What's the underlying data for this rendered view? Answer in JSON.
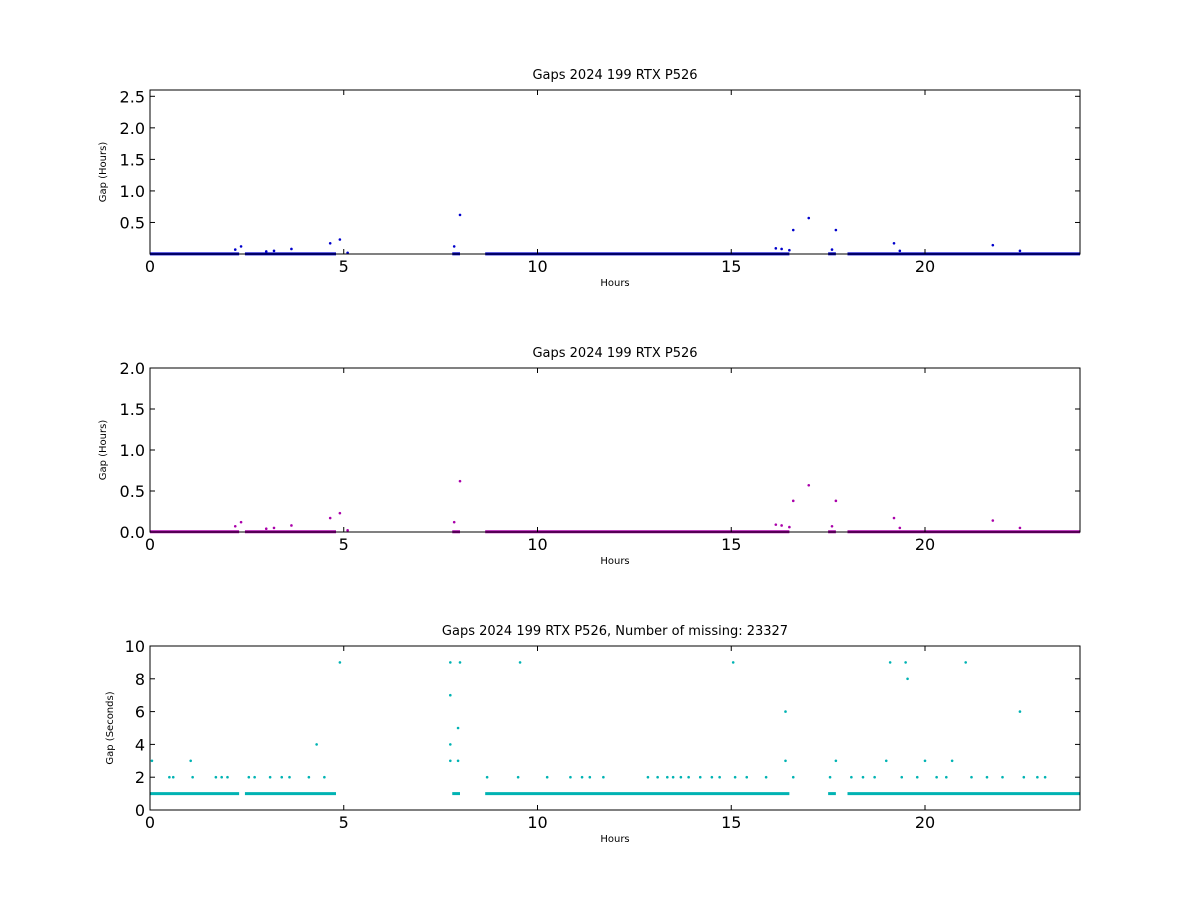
{
  "chart_data": [
    {
      "type": "scatter",
      "title": "Gaps 2024 199 RTX  P526",
      "xlabel": "Hours",
      "ylabel": "Gap (Hours)",
      "xlim": [
        0,
        24
      ],
      "ylim": [
        0,
        2.6
      ],
      "xticks": [
        "0",
        "5",
        "10",
        "15",
        "20"
      ],
      "xtick_values": [
        0,
        5,
        10,
        15,
        20
      ],
      "yticks": [
        "0.5",
        "1.0",
        "1.5",
        "2.0",
        "2.5"
      ],
      "ytick_values": [
        0.5,
        1.0,
        1.5,
        2.0,
        2.5
      ],
      "grid": false,
      "color": "#0000cc",
      "baseline": {
        "value": 0.0028,
        "segments": [
          [
            0,
            2.3
          ],
          [
            2.45,
            4.8
          ],
          [
            7.8,
            8.0
          ],
          [
            8.65,
            16.5
          ],
          [
            17.5,
            17.7
          ],
          [
            18.0,
            24
          ]
        ]
      },
      "points": [
        {
          "x": 2.2,
          "y": 0.07
        },
        {
          "x": 2.35,
          "y": 0.12
        },
        {
          "x": 3.0,
          "y": 0.04
        },
        {
          "x": 3.2,
          "y": 0.05
        },
        {
          "x": 3.65,
          "y": 0.08
        },
        {
          "x": 4.65,
          "y": 0.17
        },
        {
          "x": 4.9,
          "y": 0.23
        },
        {
          "x": 5.1,
          "y": 0.02
        },
        {
          "x": 7.85,
          "y": 0.12
        },
        {
          "x": 8.0,
          "y": 0.62
        },
        {
          "x": 16.15,
          "y": 0.09
        },
        {
          "x": 16.3,
          "y": 0.08
        },
        {
          "x": 16.5,
          "y": 0.06
        },
        {
          "x": 16.6,
          "y": 0.38
        },
        {
          "x": 17.0,
          "y": 0.57
        },
        {
          "x": 17.6,
          "y": 0.07
        },
        {
          "x": 17.7,
          "y": 0.38
        },
        {
          "x": 19.2,
          "y": 0.17
        },
        {
          "x": 19.35,
          "y": 0.05
        },
        {
          "x": 21.75,
          "y": 0.14
        },
        {
          "x": 22.45,
          "y": 0.05
        }
      ]
    },
    {
      "type": "scatter",
      "title": "Gaps 2024 199 RTX  P526",
      "xlabel": "Hours",
      "ylabel": "Gap (Hours)",
      "xlim": [
        0,
        24
      ],
      "ylim": [
        0,
        2.0
      ],
      "xticks": [
        "0",
        "5",
        "10",
        "15",
        "20"
      ],
      "xtick_values": [
        0,
        5,
        10,
        15,
        20
      ],
      "yticks": [
        "0.0",
        "0.5",
        "1.0",
        "1.5",
        "2.0"
      ],
      "ytick_values": [
        0.0,
        0.5,
        1.0,
        1.5,
        2.0
      ],
      "grid": false,
      "color": "#aa00aa",
      "baseline": {
        "value": 0.0028,
        "segments": [
          [
            0,
            2.3
          ],
          [
            2.45,
            4.8
          ],
          [
            7.8,
            8.0
          ],
          [
            8.65,
            16.5
          ],
          [
            17.5,
            17.7
          ],
          [
            18.0,
            24
          ]
        ]
      },
      "points": [
        {
          "x": 2.2,
          "y": 0.07
        },
        {
          "x": 2.35,
          "y": 0.12
        },
        {
          "x": 3.0,
          "y": 0.04
        },
        {
          "x": 3.2,
          "y": 0.05
        },
        {
          "x": 3.65,
          "y": 0.08
        },
        {
          "x": 4.65,
          "y": 0.17
        },
        {
          "x": 4.9,
          "y": 0.23
        },
        {
          "x": 5.1,
          "y": 0.02
        },
        {
          "x": 7.85,
          "y": 0.12
        },
        {
          "x": 8.0,
          "y": 0.62
        },
        {
          "x": 16.15,
          "y": 0.09
        },
        {
          "x": 16.3,
          "y": 0.08
        },
        {
          "x": 16.5,
          "y": 0.06
        },
        {
          "x": 16.6,
          "y": 0.38
        },
        {
          "x": 17.0,
          "y": 0.57
        },
        {
          "x": 17.6,
          "y": 0.07
        },
        {
          "x": 17.7,
          "y": 0.38
        },
        {
          "x": 19.2,
          "y": 0.17
        },
        {
          "x": 19.35,
          "y": 0.05
        },
        {
          "x": 21.75,
          "y": 0.14
        },
        {
          "x": 22.45,
          "y": 0.05
        }
      ]
    },
    {
      "type": "scatter",
      "title": "Gaps 2024 199 RTX  P526, Number of missing: 23327",
      "xlabel": "Hours",
      "ylabel": "Gap (Seconds)",
      "xlim": [
        0,
        24
      ],
      "ylim": [
        0,
        10
      ],
      "xticks": [
        "0",
        "5",
        "10",
        "15",
        "20"
      ],
      "xtick_values": [
        0,
        5,
        10,
        15,
        20
      ],
      "yticks": [
        "0",
        "2",
        "4",
        "6",
        "8",
        "10"
      ],
      "ytick_values": [
        0,
        2,
        4,
        6,
        8,
        10
      ],
      "grid": false,
      "color": "#00b3b3",
      "baseline": {
        "value": 1,
        "segments": [
          [
            0,
            2.3
          ],
          [
            2.45,
            4.8
          ],
          [
            7.8,
            8.0
          ],
          [
            8.65,
            16.5
          ],
          [
            17.5,
            17.7
          ],
          [
            18.0,
            24
          ]
        ]
      },
      "points": [
        {
          "x": 0.05,
          "y": 3
        },
        {
          "x": 0.5,
          "y": 2
        },
        {
          "x": 0.6,
          "y": 2
        },
        {
          "x": 1.05,
          "y": 3
        },
        {
          "x": 1.1,
          "y": 2
        },
        {
          "x": 1.7,
          "y": 2
        },
        {
          "x": 1.85,
          "y": 2
        },
        {
          "x": 2.0,
          "y": 2
        },
        {
          "x": 2.55,
          "y": 2
        },
        {
          "x": 2.7,
          "y": 2
        },
        {
          "x": 3.1,
          "y": 2
        },
        {
          "x": 3.4,
          "y": 2
        },
        {
          "x": 3.6,
          "y": 2
        },
        {
          "x": 4.1,
          "y": 2
        },
        {
          "x": 4.3,
          "y": 4
        },
        {
          "x": 4.5,
          "y": 2
        },
        {
          "x": 4.9,
          "y": 9
        },
        {
          "x": 7.75,
          "y": 9
        },
        {
          "x": 7.75,
          "y": 7
        },
        {
          "x": 7.75,
          "y": 4
        },
        {
          "x": 7.75,
          "y": 3
        },
        {
          "x": 7.95,
          "y": 3
        },
        {
          "x": 7.95,
          "y": 5
        },
        {
          "x": 8.0,
          "y": 9
        },
        {
          "x": 8.7,
          "y": 2
        },
        {
          "x": 9.5,
          "y": 2
        },
        {
          "x": 9.55,
          "y": 9
        },
        {
          "x": 10.25,
          "y": 2
        },
        {
          "x": 10.85,
          "y": 2
        },
        {
          "x": 11.15,
          "y": 2
        },
        {
          "x": 11.35,
          "y": 2
        },
        {
          "x": 11.7,
          "y": 2
        },
        {
          "x": 12.85,
          "y": 2
        },
        {
          "x": 13.1,
          "y": 2
        },
        {
          "x": 13.35,
          "y": 2
        },
        {
          "x": 13.5,
          "y": 2
        },
        {
          "x": 13.7,
          "y": 2
        },
        {
          "x": 13.9,
          "y": 2
        },
        {
          "x": 14.2,
          "y": 2
        },
        {
          "x": 14.5,
          "y": 2
        },
        {
          "x": 14.7,
          "y": 2
        },
        {
          "x": 15.05,
          "y": 9
        },
        {
          "x": 15.1,
          "y": 2
        },
        {
          "x": 15.4,
          "y": 2
        },
        {
          "x": 15.9,
          "y": 2
        },
        {
          "x": 16.4,
          "y": 6
        },
        {
          "x": 16.4,
          "y": 3
        },
        {
          "x": 16.6,
          "y": 2
        },
        {
          "x": 17.55,
          "y": 2
        },
        {
          "x": 17.7,
          "y": 3
        },
        {
          "x": 18.1,
          "y": 2
        },
        {
          "x": 18.4,
          "y": 2
        },
        {
          "x": 18.7,
          "y": 2
        },
        {
          "x": 19.0,
          "y": 3
        },
        {
          "x": 19.1,
          "y": 9
        },
        {
          "x": 19.5,
          "y": 9
        },
        {
          "x": 19.55,
          "y": 8
        },
        {
          "x": 19.4,
          "y": 2
        },
        {
          "x": 19.8,
          "y": 2
        },
        {
          "x": 20.0,
          "y": 3
        },
        {
          "x": 20.3,
          "y": 2
        },
        {
          "x": 20.55,
          "y": 2
        },
        {
          "x": 20.7,
          "y": 3
        },
        {
          "x": 21.05,
          "y": 9
        },
        {
          "x": 21.2,
          "y": 2
        },
        {
          "x": 21.6,
          "y": 2
        },
        {
          "x": 22.0,
          "y": 2
        },
        {
          "x": 22.45,
          "y": 6
        },
        {
          "x": 22.55,
          "y": 2
        },
        {
          "x": 22.9,
          "y": 2
        },
        {
          "x": 23.1,
          "y": 2
        }
      ]
    }
  ]
}
